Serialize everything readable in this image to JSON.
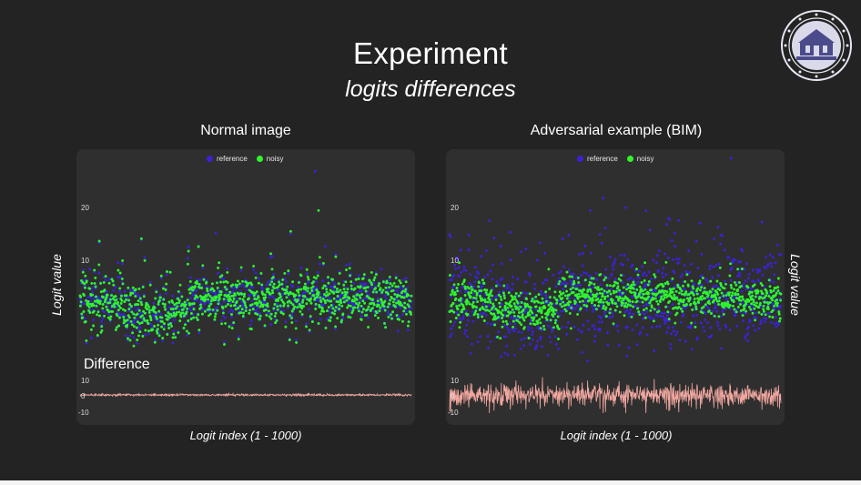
{
  "slide": {
    "title": "Experiment",
    "subtitle": "logits differences",
    "y_axis_label": "Logit value",
    "x_axis_label": "Logit index (1 - 1000)",
    "difference_label": "Difference",
    "colors": {
      "background": "#232323",
      "panel": "#2f2f2f",
      "reference": "#3b22d8",
      "noisy": "#2ef52e",
      "difference": "#f1a7a0"
    }
  },
  "chart_data": [
    {
      "type": "scatter",
      "title": "Normal image",
      "xlabel": "Logit index (1 - 1000)",
      "ylabel": "Logit value",
      "xlim": [
        1,
        1000
      ],
      "ylim": [
        -4,
        26
      ],
      "yticks": [
        10,
        20
      ],
      "legend": "top-center",
      "series": [
        {
          "name": "reference",
          "color": "#3b22d8",
          "points": [
            [
              30,
              9
            ],
            [
              115,
              10
            ],
            [
              410,
              14.5
            ],
            [
              580,
              11
            ],
            [
              710,
              24
            ],
            [
              740,
              12.5
            ],
            [
              910,
              9
            ],
            [
              960,
              -0.5
            ]
          ]
        },
        {
          "name": "noisy",
          "color": "#2ef52e",
          "points": [
            [
              20,
              7
            ],
            [
              420,
              10
            ],
            [
              580,
              9
            ],
            [
              720,
              18
            ],
            [
              880,
              8.5
            ]
          ]
        }
      ],
      "diff_panel": {
        "yticks": [
          10,
          0,
          -10
        ],
        "ylim": [
          -12,
          12
        ]
      }
    },
    {
      "type": "scatter",
      "title": "Adversarial example (BIM)",
      "xlabel": "Logit index (1 - 1000)",
      "ylabel": "Logit value",
      "xlim": [
        1,
        1000
      ],
      "ylim": [
        -4,
        26
      ],
      "yticks": [
        10,
        20
      ],
      "legend": "top-center",
      "series": [
        {
          "name": "reference",
          "color": "#3b22d8",
          "points": [
            [
              425,
              18
            ],
            [
              605,
              15
            ],
            [
              850,
              26
            ],
            [
              680,
              14.5
            ],
            [
              460,
              13
            ]
          ]
        },
        {
          "name": "noisy",
          "color": "#2ef52e",
          "points": [
            [
              30,
              10
            ],
            [
              300,
              9
            ],
            [
              590,
              10
            ],
            [
              870,
              9
            ]
          ]
        }
      ],
      "diff_panel": {
        "yticks": [
          10,
          0,
          -10
        ],
        "ylim": [
          -12,
          12
        ]
      }
    }
  ]
}
